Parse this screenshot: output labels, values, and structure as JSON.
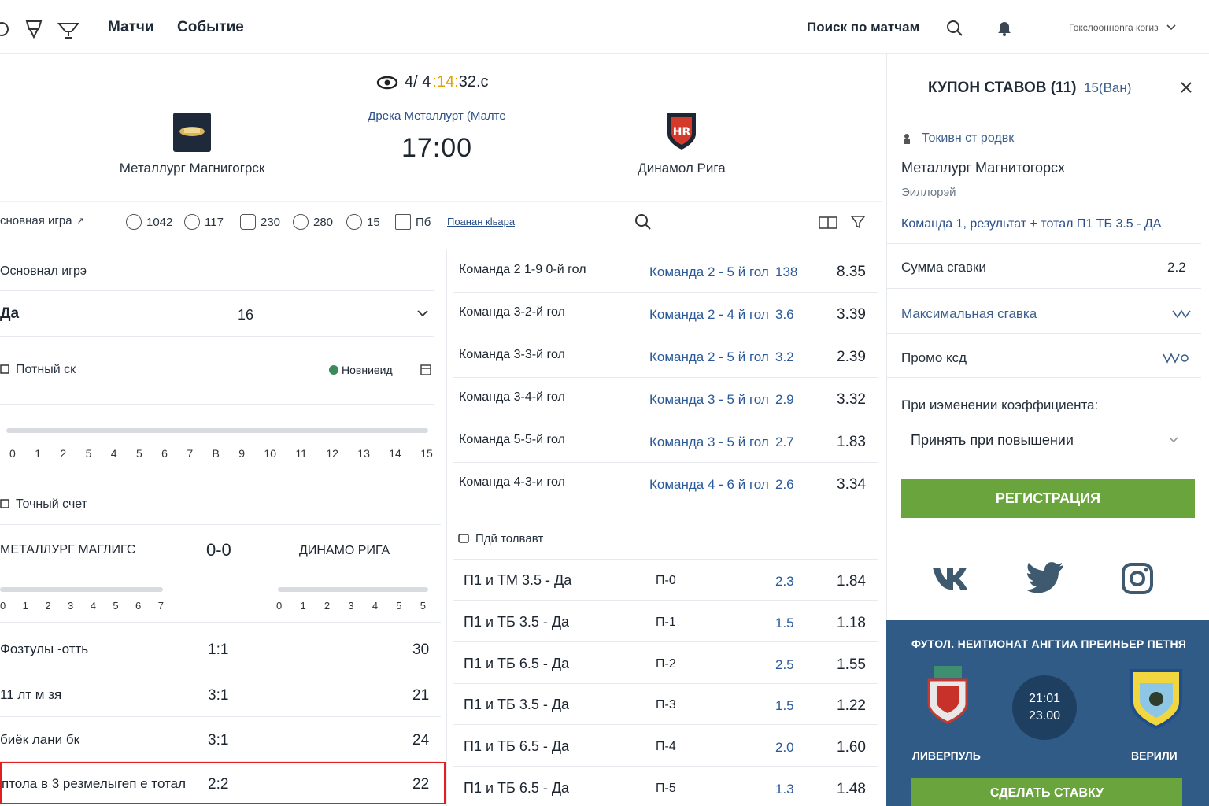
{
  "nav": {
    "links": [
      "Матчи",
      "Событие"
    ],
    "search_label": "Поиск по матчам",
    "user_label": "Гокслоонноnга когиз"
  },
  "match": {
    "timer_prefix": "4/ 4",
    "timer_highlight": ":14:",
    "timer_suffix": "32.c",
    "league": "Дрека Металлурт (Малте",
    "time": "17:00",
    "home": "Металлург Магнигогрск",
    "away": "Динамол Рига"
  },
  "markets": {
    "main_tab": "сновная игра",
    "counts": [
      "1042",
      "117",
      "230",
      "280",
      "15",
      "Пб"
    ],
    "show_all": "Поанан кlьара"
  },
  "left": {
    "main_game_title": "Основнал игрэ",
    "select_label": "Да",
    "select_value": "16",
    "total_title": "Потный ск",
    "total_badge": "Новниеид",
    "scale_1": [
      "0",
      "1",
      "2",
      "5",
      "4",
      "5",
      "6",
      "7",
      "В",
      "9",
      "10",
      "11",
      "12",
      "13",
      "14",
      "15"
    ],
    "exact_title": "Точный счет",
    "home_caps": "МЕТАЛЛУРГ МАГЛИГС",
    "score": "0-0",
    "away_caps": "ДИНАМО РИГА",
    "scale_home": [
      "0",
      "1",
      "2",
      "3",
      "4",
      "5",
      "6",
      "7"
    ],
    "scale_away": [
      "0",
      "1",
      "2",
      "3",
      "4",
      "5",
      "5"
    ],
    "rows": [
      {
        "name": "Фозтулы -отть",
        "score": "1:1",
        "odd": "30"
      },
      {
        "name": "11 лт м зя",
        "score": "3:1",
        "odd": "21"
      },
      {
        "name": "биёк лани бк",
        "score": "3:1",
        "odd": "24"
      },
      {
        "name": "птола в 3 резмелыгеп е тотал",
        "score": "2:2",
        "odd": "22"
      }
    ]
  },
  "goals": [
    {
      "a": "Команда 2 1-9 0-й гол",
      "b": "Команда 2 - 5 й гол",
      "c": "138",
      "d": "8.35"
    },
    {
      "a": "Команда 3-2-й гол",
      "b": "Команда 2 - 4 й гол",
      "c": "3.6",
      "d": "3.39"
    },
    {
      "a": "Команда 3-3-й гол",
      "b": "Команда 2 - 5 й гол",
      "c": "3.2",
      "d": "2.39"
    },
    {
      "a": "Команда 3-4-й гол",
      "b": "Команда 3 - 5 й гол",
      "c": "2.9",
      "d": "3.32"
    },
    {
      "a": "Команда 5-5-й гол",
      "b": "Команда 3 - 5 й гол",
      "c": "2.7",
      "d": "1.83"
    },
    {
      "a": "Команда 4-3-и гол",
      "b": "Команда 4 - 6 й гол",
      "c": "2.6",
      "d": "3.34"
    }
  ],
  "combo_title": "Пдй толвавт",
  "combos": [
    {
      "a": "П1 и ТМ 3.5 - Да",
      "b": "П-0",
      "c": "2.3",
      "d": "1.84"
    },
    {
      "a": "П1 и ТБ 3.5 - Да",
      "b": "П-1",
      "c": "1.5",
      "d": "1.18"
    },
    {
      "a": "П1 и ТБ 6.5 - Да",
      "b": "П-2",
      "c": "2.5",
      "d": "1.55"
    },
    {
      "a": "П1 и ТБ 3.5 - Да",
      "b": "П-3",
      "c": "1.5",
      "d": "1.22"
    },
    {
      "a": "П1 и ТБ 6.5 - Да",
      "b": "П-4",
      "c": "2.0",
      "d": "1.60"
    },
    {
      "a": "П1 и ТБ 6.5 - Да",
      "b": "П-5",
      "c": "1.3",
      "d": "1.48"
    }
  ],
  "coupon": {
    "title": "КУПОН СТАВОВ (11)",
    "subtitle": "15(Ван)",
    "type_label": "Токивн ст родвк",
    "team": "Металлург Магнитогорсх",
    "sub": "Эиллорэй",
    "bet": "Команда 1, результат + тотал П1 ТБ 3.5 - ДА",
    "sum_label": "Сумма сгавки",
    "sum_value": "2.2",
    "max_label": "Максимальная сгавка",
    "promo_label": "Промо ксд",
    "odds_change_label": "При иэменении коэффициента:",
    "odds_option": "Принять при повышении",
    "register": "РЕГИСТРАЦИЯ"
  },
  "promo": {
    "title": "ФУТОЛ. НЕИТИОНАТ АНГТИА ПРЕИНЬЕР ПЕТНЯ",
    "time": "21:01",
    "date": "23.00",
    "home": "ЛИВЕРПУЛЬ",
    "away": "ВЕРИЛИ",
    "bet_button": "СДЕЛАТЬ СТАВКУ"
  },
  "colors": {
    "accent_green": "#6aa43d",
    "link_blue": "#2a5a9a",
    "promo_bg": "#2f5b86",
    "timer_highlight": "#e1a200",
    "selection_border": "#e02020"
  }
}
